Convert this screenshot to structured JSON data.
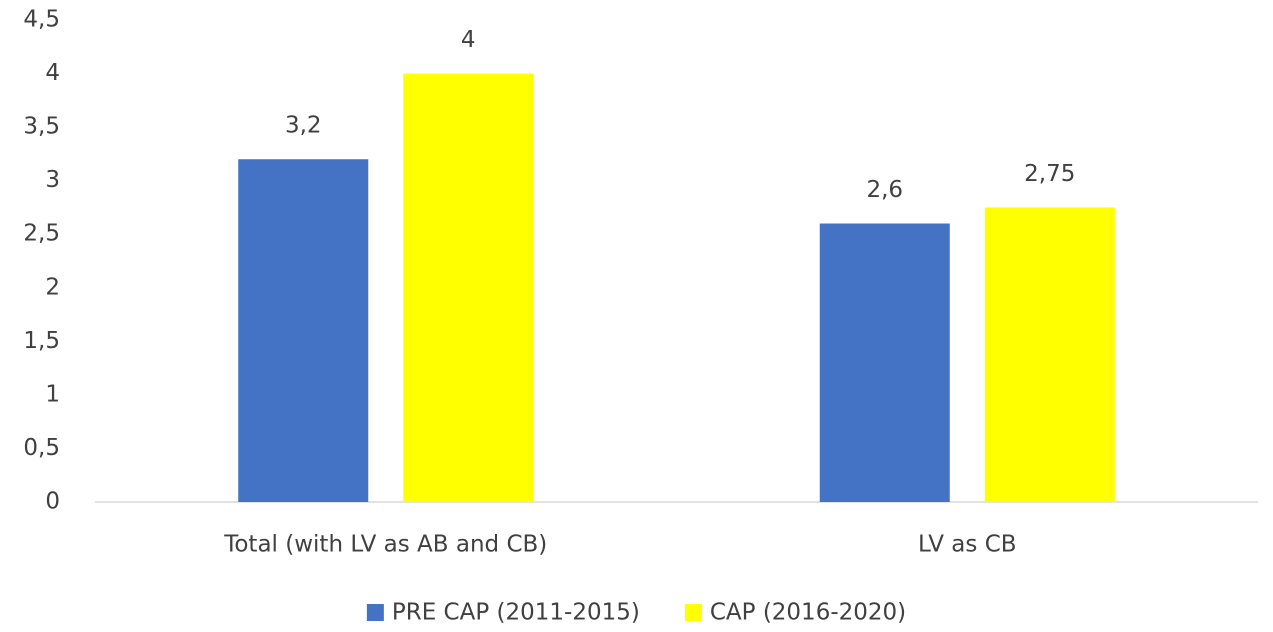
{
  "chart_data": {
    "type": "bar",
    "categories": [
      "Total (with LV as AB and CB)",
      "LV as CB"
    ],
    "series": [
      {
        "name": "PRE CAP (2011-2015)",
        "color": "#4472c4",
        "values": [
          3.2,
          2.6
        ],
        "value_labels": [
          "3,2",
          "2,6"
        ]
      },
      {
        "name": "CAP (2016-2020)",
        "color": "#ffff00",
        "values": [
          4,
          2.75
        ],
        "value_labels": [
          "4",
          "2,75"
        ]
      }
    ],
    "ylim": [
      0,
      4.5
    ],
    "yticks": [
      0,
      {
        "value": 0.5,
        "label": "0,5"
      },
      1,
      {
        "value": 1.5,
        "label": "1,5"
      },
      2,
      {
        "value": 2.5,
        "label": "2,5"
      },
      3,
      {
        "value": 3.5,
        "label": "3,5"
      },
      4,
      {
        "value": 4.5,
        "label": "4,5"
      }
    ],
    "grid": false,
    "legend": "bottom"
  }
}
